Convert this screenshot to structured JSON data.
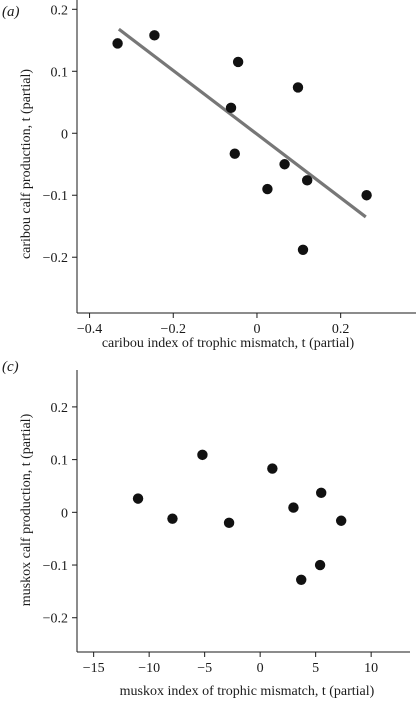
{
  "chart_data": [
    {
      "type": "scatter",
      "panel_label": "(a)",
      "xlabel": "caribou index of trophic mismatch, t (partial)",
      "ylabel": "caribou calf production, t (partial)",
      "xlim": [
        -0.43,
        0.38
      ],
      "ylim": [
        -0.29,
        0.215
      ],
      "x_ticks": [
        -0.4,
        -0.2,
        0,
        0.2
      ],
      "x_tick_labels": [
        "−0.4",
        "−0.2",
        "0",
        "0.2"
      ],
      "y_ticks": [
        -0.2,
        -0.1,
        0,
        0.1,
        0.2
      ],
      "y_tick_labels": [
        "−0.2",
        "−0.1",
        "0",
        "0.1",
        "0.2"
      ],
      "grid": false,
      "points": [
        {
          "x": -0.333,
          "y": 0.145
        },
        {
          "x": -0.245,
          "y": 0.158
        },
        {
          "x": -0.045,
          "y": 0.115
        },
        {
          "x": -0.062,
          "y": 0.041
        },
        {
          "x": -0.053,
          "y": -0.033
        },
        {
          "x": 0.025,
          "y": -0.09
        },
        {
          "x": 0.066,
          "y": -0.05
        },
        {
          "x": 0.098,
          "y": 0.074
        },
        {
          "x": 0.12,
          "y": -0.076
        },
        {
          "x": 0.11,
          "y": -0.188
        },
        {
          "x": 0.262,
          "y": -0.1
        }
      ],
      "fit_line": {
        "x": [
          -0.33,
          0.26
        ],
        "y": [
          0.168,
          -0.135
        ]
      }
    },
    {
      "type": "scatter",
      "panel_label": "(c)",
      "xlabel": "muskox index of trophic mismatch, t (partial)",
      "ylabel": "muskox calf production, t (partial)",
      "xlim": [
        -16.5,
        13.5
      ],
      "ylim": [
        -0.265,
        0.27
      ],
      "x_ticks": [
        -15,
        -10,
        -5,
        0,
        5,
        10
      ],
      "x_tick_labels": [
        "−15",
        "−10",
        "−5",
        "0",
        "5",
        "10"
      ],
      "y_ticks": [
        -0.2,
        -0.1,
        0,
        0.1,
        0.2
      ],
      "y_tick_labels": [
        "−0.2",
        "−0.1",
        "0",
        "0.1",
        "0.2"
      ],
      "grid": false,
      "points": [
        {
          "x": -11.0,
          "y": 0.026
        },
        {
          "x": -7.9,
          "y": -0.012
        },
        {
          "x": -5.2,
          "y": 0.109
        },
        {
          "x": -2.8,
          "y": -0.02
        },
        {
          "x": 1.1,
          "y": 0.083
        },
        {
          "x": 3.0,
          "y": 0.009
        },
        {
          "x": 3.7,
          "y": -0.128
        },
        {
          "x": 5.4,
          "y": -0.1
        },
        {
          "x": 5.5,
          "y": 0.037
        },
        {
          "x": 7.3,
          "y": -0.016
        }
      ]
    }
  ]
}
